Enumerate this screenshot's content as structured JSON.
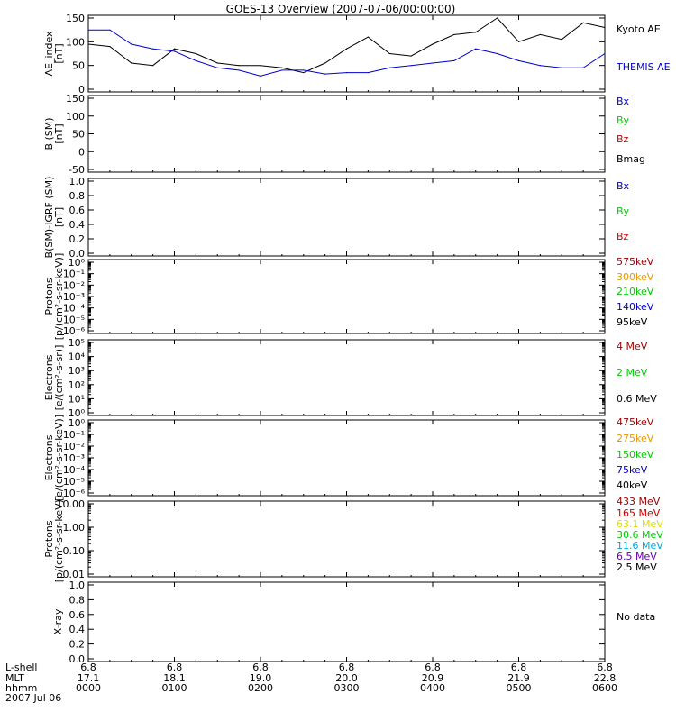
{
  "title": "GOES-13 Overview (2007-07-06/00:00:00)",
  "colors": {
    "black": "#000000",
    "blue": "#0000cc",
    "green": "#00cc00",
    "red": "#cc0000",
    "darkred": "#990000",
    "orange": "#e69900",
    "cyan": "#00aadd",
    "purple": "#6600aa",
    "yellow": "#dddd00"
  },
  "panels": [
    {
      "id": "ae",
      "ylabel": [
        "AE_index",
        "[nT]"
      ],
      "scale": "linear",
      "yticks": [
        "150",
        "100",
        "50",
        "0"
      ],
      "legend": [
        {
          "text": "Kyoto AE",
          "color": "#000000"
        },
        {
          "text": "THEMIS AE",
          "color": "#0000cc"
        }
      ]
    },
    {
      "id": "bfield",
      "ylabel": [
        "B (SM)",
        "[nT]"
      ],
      "scale": "linear",
      "yticks": [
        "150",
        "100",
        "50",
        "0",
        "-50"
      ],
      "legend": [
        {
          "text": "Bx",
          "color": "#0000cc"
        },
        {
          "text": "By",
          "color": "#00cc00"
        },
        {
          "text": "Bz",
          "color": "#cc0000"
        },
        {
          "text": "Bmag",
          "color": "#000000"
        }
      ]
    },
    {
      "id": "bdiff",
      "ylabel": [
        "B(SM)-IGRF (SM)",
        "[nT]"
      ],
      "scale": "linear",
      "yticks": [
        "1.0",
        "0.8",
        "0.6",
        "0.4",
        "0.2",
        "0.0"
      ],
      "legend": [
        {
          "text": "Bx",
          "color": "#0000cc"
        },
        {
          "text": "By",
          "color": "#00cc00"
        },
        {
          "text": "Bz",
          "color": "#cc0000"
        }
      ]
    },
    {
      "id": "protons-mag",
      "ylabel": [
        "Protons",
        "[p/(cm²-s-sr-keV)]"
      ],
      "scale": "log",
      "yticks": [
        "10⁰",
        "10⁻¹",
        "10⁻²",
        "10⁻³",
        "10⁻⁴",
        "10⁻⁵",
        "10⁻⁶"
      ],
      "legend": [
        {
          "text": "575keV",
          "color": "#990000"
        },
        {
          "text": "300keV",
          "color": "#e69900"
        },
        {
          "text": "210keV",
          "color": "#00cc00"
        },
        {
          "text": "140keV",
          "color": "#0000cc"
        },
        {
          "text": "95keV",
          "color": "#000000"
        }
      ]
    },
    {
      "id": "electrons-eps",
      "ylabel": [
        "Electrons",
        "[e/(cm²-s-sr)]"
      ],
      "scale": "log",
      "yticks": [
        "10⁵",
        "10⁴",
        "10³",
        "10²",
        "10¹",
        "10⁰"
      ],
      "legend": [
        {
          "text": "4 MeV",
          "color": "#990000"
        },
        {
          "text": "2 MeV",
          "color": "#00cc00"
        },
        {
          "text": "0.6 MeV",
          "color": "#000000"
        }
      ]
    },
    {
      "id": "electrons-mag",
      "ylabel": [
        "Electrons",
        "[e/(cm²-s-sr-keV)]"
      ],
      "scale": "log",
      "yticks": [
        "10⁰",
        "10⁻¹",
        "10⁻²",
        "10⁻³",
        "10⁻⁴",
        "10⁻⁵",
        "10⁻⁶"
      ],
      "legend": [
        {
          "text": "475keV",
          "color": "#990000"
        },
        {
          "text": "275keV",
          "color": "#e69900"
        },
        {
          "text": "150keV",
          "color": "#00cc00"
        },
        {
          "text": "75keV",
          "color": "#0000cc"
        },
        {
          "text": "40keV",
          "color": "#000000"
        }
      ]
    },
    {
      "id": "protons-hi",
      "ylabel": [
        "Protons",
        "[p/(cm²-s-sr-keV)]"
      ],
      "scale": "log",
      "yticks": [
        "10.00",
        "1.00",
        "0.10",
        "0.01"
      ],
      "legend": [
        {
          "text": "433 MeV",
          "color": "#990000"
        },
        {
          "text": "165 MeV",
          "color": "#cc0000"
        },
        {
          "text": "63.1 MeV",
          "color": "#dddd00"
        },
        {
          "text": "30.6 MeV",
          "color": "#00cc00"
        },
        {
          "text": "11.6 MeV",
          "color": "#00aadd"
        },
        {
          "text": "6.5 MeV",
          "color": "#6600aa"
        },
        {
          "text": "2.5 MeV",
          "color": "#000000"
        }
      ]
    },
    {
      "id": "xray",
      "ylabel": [
        "X-ray"
      ],
      "scale": "linear",
      "yticks": [
        "1.0",
        "0.8",
        "0.6",
        "0.4",
        "0.2",
        "0.0"
      ],
      "legend": [
        {
          "text": "No data",
          "color": "#000000"
        }
      ]
    }
  ],
  "xaxis": {
    "row_labels": [
      "L-shell",
      "MLT",
      "hhmm",
      "2007 Jul 06"
    ],
    "ticks": [
      {
        "lshell": "6.8",
        "mlt": "17.1",
        "hhmm": "0000"
      },
      {
        "lshell": "6.8",
        "mlt": "18.1",
        "hhmm": "0100"
      },
      {
        "lshell": "6.8",
        "mlt": "19.0",
        "hhmm": "0200"
      },
      {
        "lshell": "6.8",
        "mlt": "20.0",
        "hhmm": "0300"
      },
      {
        "lshell": "6.8",
        "mlt": "20.9",
        "hhmm": "0400"
      },
      {
        "lshell": "6.8",
        "mlt": "21.9",
        "hhmm": "0500"
      },
      {
        "lshell": "6.8",
        "mlt": "22.8",
        "hhmm": "0600"
      }
    ]
  },
  "chart_data": {
    "type": "line",
    "title": "GOES-13 Overview (2007-07-06/00:00:00)",
    "xlabel": "hhmm",
    "ylabel": "AE_index [nT]",
    "x": [
      0,
      0.25,
      0.5,
      0.75,
      1.0,
      1.25,
      1.5,
      1.75,
      2.0,
      2.25,
      2.5,
      2.75,
      3.0,
      3.25,
      3.5,
      3.75,
      4.0,
      4.25,
      4.5,
      4.75,
      5.0,
      5.25,
      5.5,
      5.75,
      6.0
    ],
    "ylim": [
      0,
      150
    ],
    "series": [
      {
        "name": "Kyoto AE",
        "values": [
          95,
          90,
          55,
          50,
          85,
          75,
          55,
          50,
          50,
          45,
          35,
          55,
          85,
          110,
          75,
          70,
          95,
          115,
          120,
          150,
          100,
          115,
          105,
          140,
          130
        ]
      },
      {
        "name": "THEMIS AE",
        "values": [
          125,
          125,
          95,
          85,
          80,
          60,
          45,
          40,
          28,
          40,
          40,
          32,
          35,
          35,
          45,
          50,
          55,
          60,
          85,
          75,
          60,
          50,
          45,
          45,
          75
        ]
      }
    ]
  }
}
